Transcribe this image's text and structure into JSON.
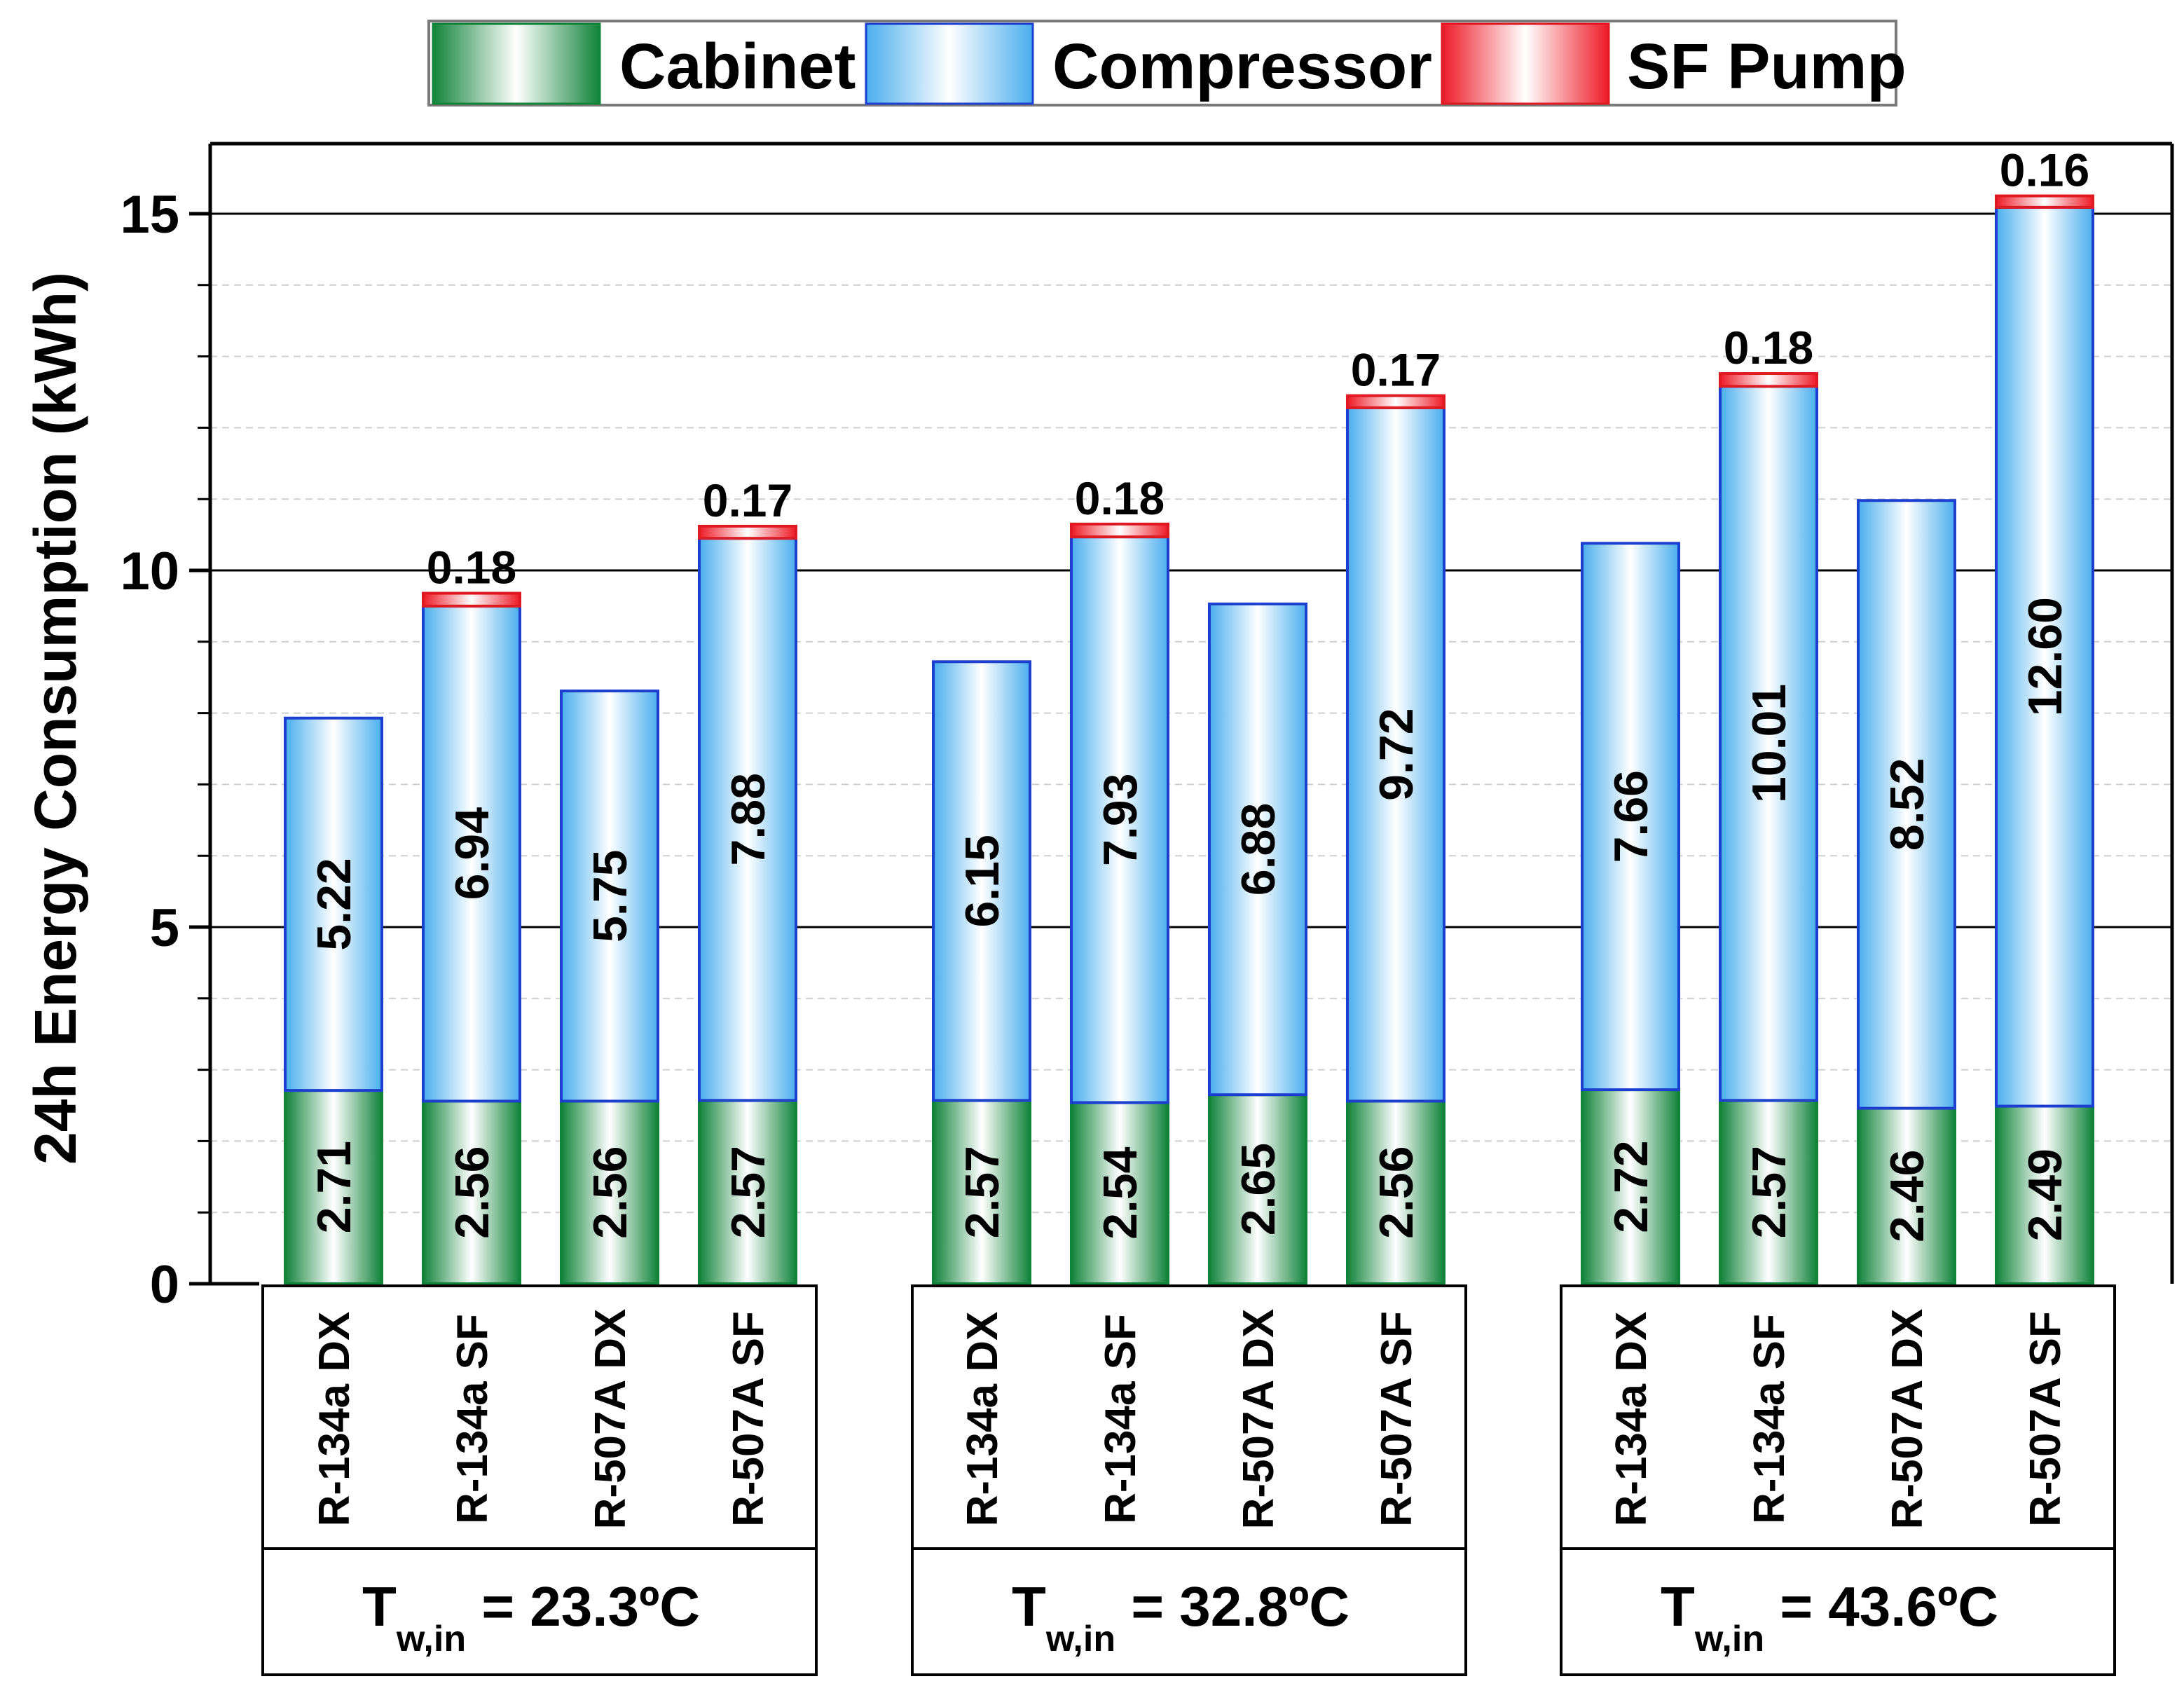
{
  "chart_data": {
    "type": "bar",
    "stacked": true,
    "title": "",
    "ylabel": "24h Energy Consumption (kWh)",
    "xlabel": "",
    "ylim": [
      0,
      16
    ],
    "yticks": [
      0,
      5,
      10,
      15
    ],
    "minor_grid_step": 1,
    "legend_position": "top",
    "legend": [
      {
        "name": "Cabinet",
        "color": "#1e9a45"
      },
      {
        "name": "Compressor",
        "color": "#5cb6ee"
      },
      {
        "name": "SF Pump",
        "color": "#f01e2a"
      }
    ],
    "groups": [
      {
        "label_prefix": "T",
        "label_subscript": "w,in",
        "label_value": " = 23.3",
        "label_unit": "ºC",
        "categories": [
          "R-134a DX",
          "R-134a SF",
          "R-507A DX",
          "R-507A SF"
        ],
        "series": [
          {
            "name": "Cabinet",
            "values": [
              2.71,
              2.56,
              2.56,
              2.57
            ]
          },
          {
            "name": "Compressor",
            "values": [
              5.22,
              6.94,
              5.75,
              7.88
            ]
          },
          {
            "name": "SF Pump",
            "values": [
              null,
              0.18,
              null,
              0.17
            ]
          }
        ],
        "cabinet_labels": [
          "2.71",
          "2.56",
          "2.56",
          "2.57"
        ],
        "compressor_labels": [
          "5.22",
          "6.94",
          "5.75",
          "7.88"
        ],
        "pump_labels": [
          "",
          "0.18",
          "",
          "0.17"
        ]
      },
      {
        "label_prefix": "T",
        "label_subscript": "w,in",
        "label_value": " = 32.8",
        "label_unit": "ºC",
        "categories": [
          "R-134a DX",
          "R-134a SF",
          "R-507A DX",
          "R-507A SF"
        ],
        "series": [
          {
            "name": "Cabinet",
            "values": [
              2.57,
              2.54,
              2.65,
              2.56
            ]
          },
          {
            "name": "Compressor",
            "values": [
              6.15,
              7.93,
              6.88,
              9.72
            ]
          },
          {
            "name": "SF Pump",
            "values": [
              null,
              0.18,
              null,
              0.17
            ]
          }
        ],
        "cabinet_labels": [
          "2.57",
          "2.54",
          "2.65",
          "2.56"
        ],
        "compressor_labels": [
          "6.15",
          "7.93",
          "6.88",
          "9.72"
        ],
        "pump_labels": [
          "",
          "0.18",
          "",
          "0.17"
        ]
      },
      {
        "label_prefix": "T",
        "label_subscript": "w,in",
        "label_value": " = 43.6",
        "label_unit": "ºC",
        "categories": [
          "R-134a DX",
          "R-134a SF",
          "R-507A DX",
          "R-507A SF"
        ],
        "series": [
          {
            "name": "Cabinet",
            "values": [
              2.72,
              2.57,
              2.46,
              2.49
            ]
          },
          {
            "name": "Compressor",
            "values": [
              7.66,
              10.01,
              8.52,
              12.6
            ]
          },
          {
            "name": "SF Pump",
            "values": [
              null,
              0.18,
              null,
              0.16
            ]
          }
        ],
        "cabinet_labels": [
          "2.72",
          "2.57",
          "2.46",
          "2.49"
        ],
        "compressor_labels": [
          "7.66",
          "10.01",
          "8.52",
          "12.60"
        ],
        "pump_labels": [
          "",
          "0.18",
          "",
          "0.16"
        ]
      }
    ]
  }
}
